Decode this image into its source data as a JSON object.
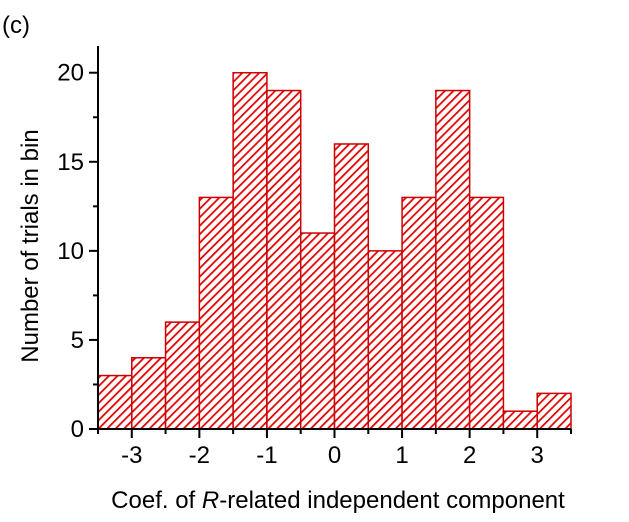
{
  "panel_label": "(c)",
  "chart_data": {
    "type": "bar",
    "title": "",
    "xlabel_prefix": "Coef. of ",
    "xlabel_italic": "R",
    "xlabel_suffix": "-related independent component",
    "ylabel": "Number of trials in bin",
    "bin_width": 0.5,
    "bin_starts": [
      -3.5,
      -3.0,
      -2.5,
      -2.0,
      -1.5,
      -1.0,
      -0.5,
      0.0,
      0.5,
      1.0,
      1.5,
      2.0,
      2.5,
      3.0
    ],
    "values": [
      3,
      4,
      6,
      13,
      20,
      19,
      11,
      16,
      10,
      13,
      19,
      13,
      1,
      2
    ],
    "xlim": [
      -3.5,
      3.5
    ],
    "ylim": [
      0,
      21.5
    ],
    "xticks": [
      -3,
      -2,
      -1,
      0,
      1,
      2,
      3
    ],
    "xtick_labels": [
      "-3",
      "-2",
      "-1",
      "0",
      "1",
      "2",
      "3"
    ],
    "yticks": [
      0,
      5,
      10,
      15,
      20
    ],
    "ytick_labels": [
      "0",
      "5",
      "10",
      "15",
      "20"
    ],
    "bar_fill_color": "#ff3b3b",
    "bar_hatch_color": "#e00000",
    "bar_edge_color": "#cc0000",
    "hatch": "diagonal",
    "grid": false
  }
}
